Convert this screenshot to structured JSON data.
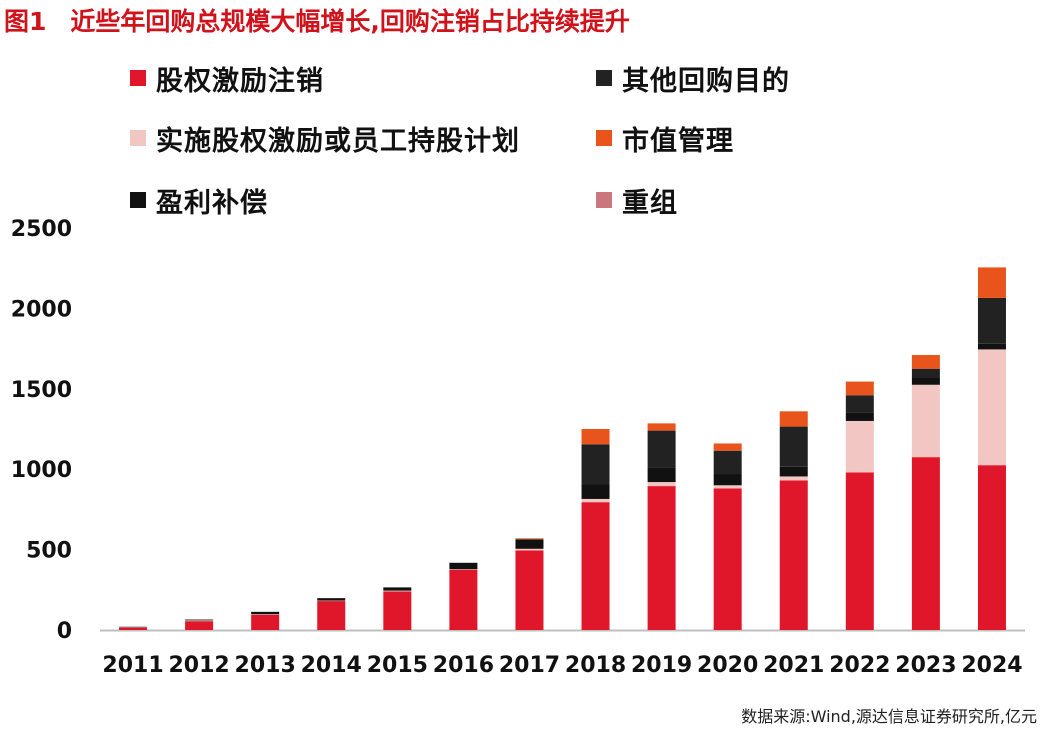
{
  "figure": {
    "number": "图1",
    "title": "近些年回购总规模大幅增长,回购注销占比持续提升"
  },
  "source": "数据来源:Wind,源达信息证券研究所,亿元",
  "chart_data": {
    "type": "bar",
    "stacked": true,
    "title": "近些年回购总规模大幅增长,回购注销占比持续提升",
    "xlabel": "",
    "ylabel": "",
    "ylim": [
      0,
      2500
    ],
    "yticks": [
      0,
      500,
      1000,
      1500,
      2000,
      2500
    ],
    "grid": false,
    "legend_position": "top",
    "categories": [
      "2011",
      "2012",
      "2013",
      "2014",
      "2015",
      "2016",
      "2017",
      "2018",
      "2019",
      "2020",
      "2021",
      "2022",
      "2023",
      "2024"
    ],
    "series": [
      {
        "name": "股权激励注销",
        "color": "#e0172a",
        "values": [
          15,
          55,
          95,
          180,
          240,
          375,
          495,
          795,
          895,
          880,
          930,
          980,
          1075,
          1025
        ]
      },
      {
        "name": "实施股权激励或员工持股计划",
        "color": "#f2c6c2",
        "values": [
          2,
          5,
          3,
          3,
          5,
          3,
          10,
          20,
          25,
          20,
          25,
          320,
          450,
          720
        ]
      },
      {
        "name": "盈利补偿",
        "color": "#111111",
        "values": [
          3,
          5,
          15,
          15,
          20,
          40,
          55,
          90,
          90,
          70,
          60,
          50,
          45,
          35
        ]
      },
      {
        "name": "其他回购目的",
        "color": "#222222",
        "values": [
          0,
          0,
          0,
          0,
          0,
          0,
          5,
          250,
          230,
          145,
          250,
          110,
          55,
          285
        ]
      },
      {
        "name": "市值管理",
        "color": "#e8541c",
        "values": [
          0,
          0,
          0,
          0,
          0,
          0,
          5,
          95,
          45,
          45,
          95,
          85,
          85,
          190
        ]
      },
      {
        "name": "重组",
        "color": "#c9777a",
        "values": [
          0,
          0,
          0,
          0,
          0,
          0,
          0,
          0,
          0,
          0,
          0,
          0,
          0,
          0
        ]
      }
    ],
    "legend_order": [
      "股权激励注销",
      "其他回购目的",
      "实施股权激励或员工持股计划",
      "市值管理",
      "盈利补偿",
      "重组"
    ]
  }
}
